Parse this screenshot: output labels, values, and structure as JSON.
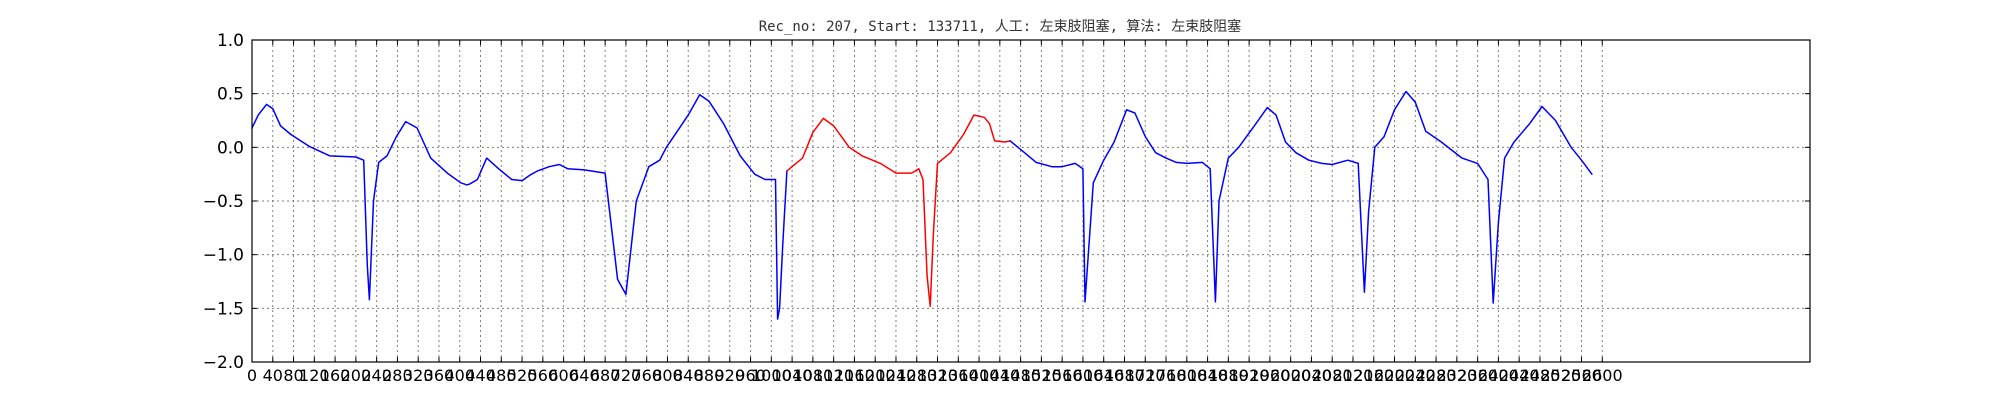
{
  "chart_data": {
    "type": "line",
    "title": "Rec_no: 207, Start: 133711, 人工: 左束肢阻塞, 算法: 左束肢阻塞",
    "xlabel": "",
    "ylabel": "",
    "xlim": [
      0,
      3000
    ],
    "ylim": [
      -2.0,
      1.0
    ],
    "grid": true,
    "y_ticks": [
      1.0,
      0.5,
      0.0,
      -0.5,
      -1.0,
      -1.5,
      -2.0
    ],
    "y_tick_labels": [
      "1.0",
      "0.5",
      "0.0",
      "−0.5",
      "−1.0",
      "−1.5",
      "−2.0"
    ],
    "x_ticks": [
      0,
      40,
      80,
      120,
      160,
      200,
      240,
      280,
      320,
      360,
      400,
      440,
      480,
      520,
      560,
      600,
      640,
      680,
      720,
      760,
      800,
      840,
      880,
      920,
      960,
      1000,
      1040,
      1080,
      1120,
      1160,
      1200,
      1240,
      1280,
      1320,
      1360,
      1400,
      1440,
      1480,
      1520,
      1560,
      1600,
      1640,
      1680,
      1720,
      1760,
      1800,
      1840,
      1880,
      1920,
      1960,
      2000,
      2040,
      2080,
      2120,
      2160,
      2200,
      2240,
      2280,
      2320,
      2360,
      2400,
      2440,
      2480,
      2520,
      2560,
      2600
    ],
    "colors": {
      "normal": "#0000ff",
      "highlight": "#ff0000"
    },
    "beats": [
      {
        "x": [
          0,
          12,
          28,
          40,
          55,
          75,
          110,
          150,
          200,
          215,
          222,
          226,
          234,
          244,
          260,
          278,
          296,
          318,
          344,
          376,
          402,
          414,
          420,
          434,
          452,
          475,
          500,
          520
        ],
        "y": [
          0.18,
          0.3,
          0.4,
          0.36,
          0.2,
          0.12,
          0.01,
          -0.08,
          -0.09,
          -0.12,
          -1.1,
          -1.42,
          -0.5,
          -0.14,
          -0.08,
          0.1,
          0.24,
          0.18,
          -0.1,
          -0.24,
          -0.33,
          -0.35,
          -0.34,
          -0.3,
          -0.1,
          -0.2,
          -0.3,
          -0.31
        ]
      },
      {
        "x": [
          520,
          535,
          550,
          572,
          592,
          608,
          640,
          680,
          704,
          720,
          740,
          764,
          785,
          798,
          812,
          840,
          862,
          880,
          908,
          940,
          968,
          988,
          1000,
          1008,
          1012,
          1016,
          1022,
          1030
        ],
        "y": [
          -0.31,
          -0.26,
          -0.22,
          -0.18,
          -0.16,
          -0.2,
          -0.21,
          -0.24,
          -1.23,
          -1.37,
          -0.5,
          -0.18,
          -0.12,
          0.0,
          0.1,
          0.3,
          0.49,
          0.43,
          0.22,
          -0.08,
          -0.25,
          -0.3,
          -0.3,
          -0.3,
          -1.6,
          -1.5,
          -0.9,
          -0.22
        ]
      },
      {
        "x": [
          1030,
          1060,
          1080,
          1100,
          1120,
          1150,
          1175,
          1195,
          1210
        ],
        "y": [
          -0.22,
          -0.1,
          0.14,
          0.27,
          0.2,
          0.0,
          -0.08,
          -0.12,
          -0.15
        ]
      },
      {
        "x": [
          1210,
          1240,
          1270,
          1284,
          1292,
          1300,
          1306,
          1312,
          1320,
          1345,
          1370,
          1390,
          1410,
          1420,
          1430,
          1450,
          1460
        ],
        "y": [
          -0.15,
          -0.24,
          -0.24,
          -0.2,
          -0.3,
          -1.2,
          -1.48,
          -0.8,
          -0.15,
          -0.05,
          0.12,
          0.3,
          0.28,
          0.22,
          0.06,
          0.05,
          0.06
        ]
      },
      {
        "x": [
          1460,
          1485,
          1510,
          1540,
          1560,
          1585,
          1600,
          1604,
          1620,
          1640,
          1660,
          1684,
          1700,
          1720,
          1740,
          1760,
          1780,
          1800,
          1830,
          1845,
          1855,
          1862,
          1880,
          1900,
          1930,
          1955,
          1972,
          1990,
          2010,
          2035,
          2060,
          2080
        ],
        "y": [
          0.06,
          -0.04,
          -0.14,
          -0.18,
          -0.18,
          -0.15,
          -0.2,
          -1.44,
          -0.33,
          -0.12,
          0.05,
          0.35,
          0.32,
          0.1,
          -0.05,
          -0.1,
          -0.14,
          -0.15,
          -0.14,
          -0.2,
          -1.44,
          -0.5,
          -0.1,
          0.0,
          0.2,
          0.37,
          0.3,
          0.05,
          -0.05,
          -0.12,
          -0.15,
          -0.16
        ]
      },
      {
        "x": [
          2080,
          2110,
          2130,
          2142,
          2150,
          2162,
          2180,
          2200,
          2222,
          2240,
          2260,
          2290,
          2330,
          2360,
          2380,
          2390,
          2400,
          2412,
          2430,
          2460,
          2484,
          2510,
          2540,
          2560,
          2580
        ],
        "y": [
          -0.16,
          -0.12,
          -0.15,
          -1.35,
          -0.6,
          0.0,
          0.1,
          0.35,
          0.52,
          0.42,
          0.15,
          0.05,
          -0.1,
          -0.15,
          -0.3,
          -1.45,
          -0.7,
          -0.1,
          0.05,
          0.22,
          0.38,
          0.25,
          0.0,
          -0.12,
          -0.25
        ]
      }
    ],
    "highlight_beats": [
      2,
      3
    ]
  }
}
